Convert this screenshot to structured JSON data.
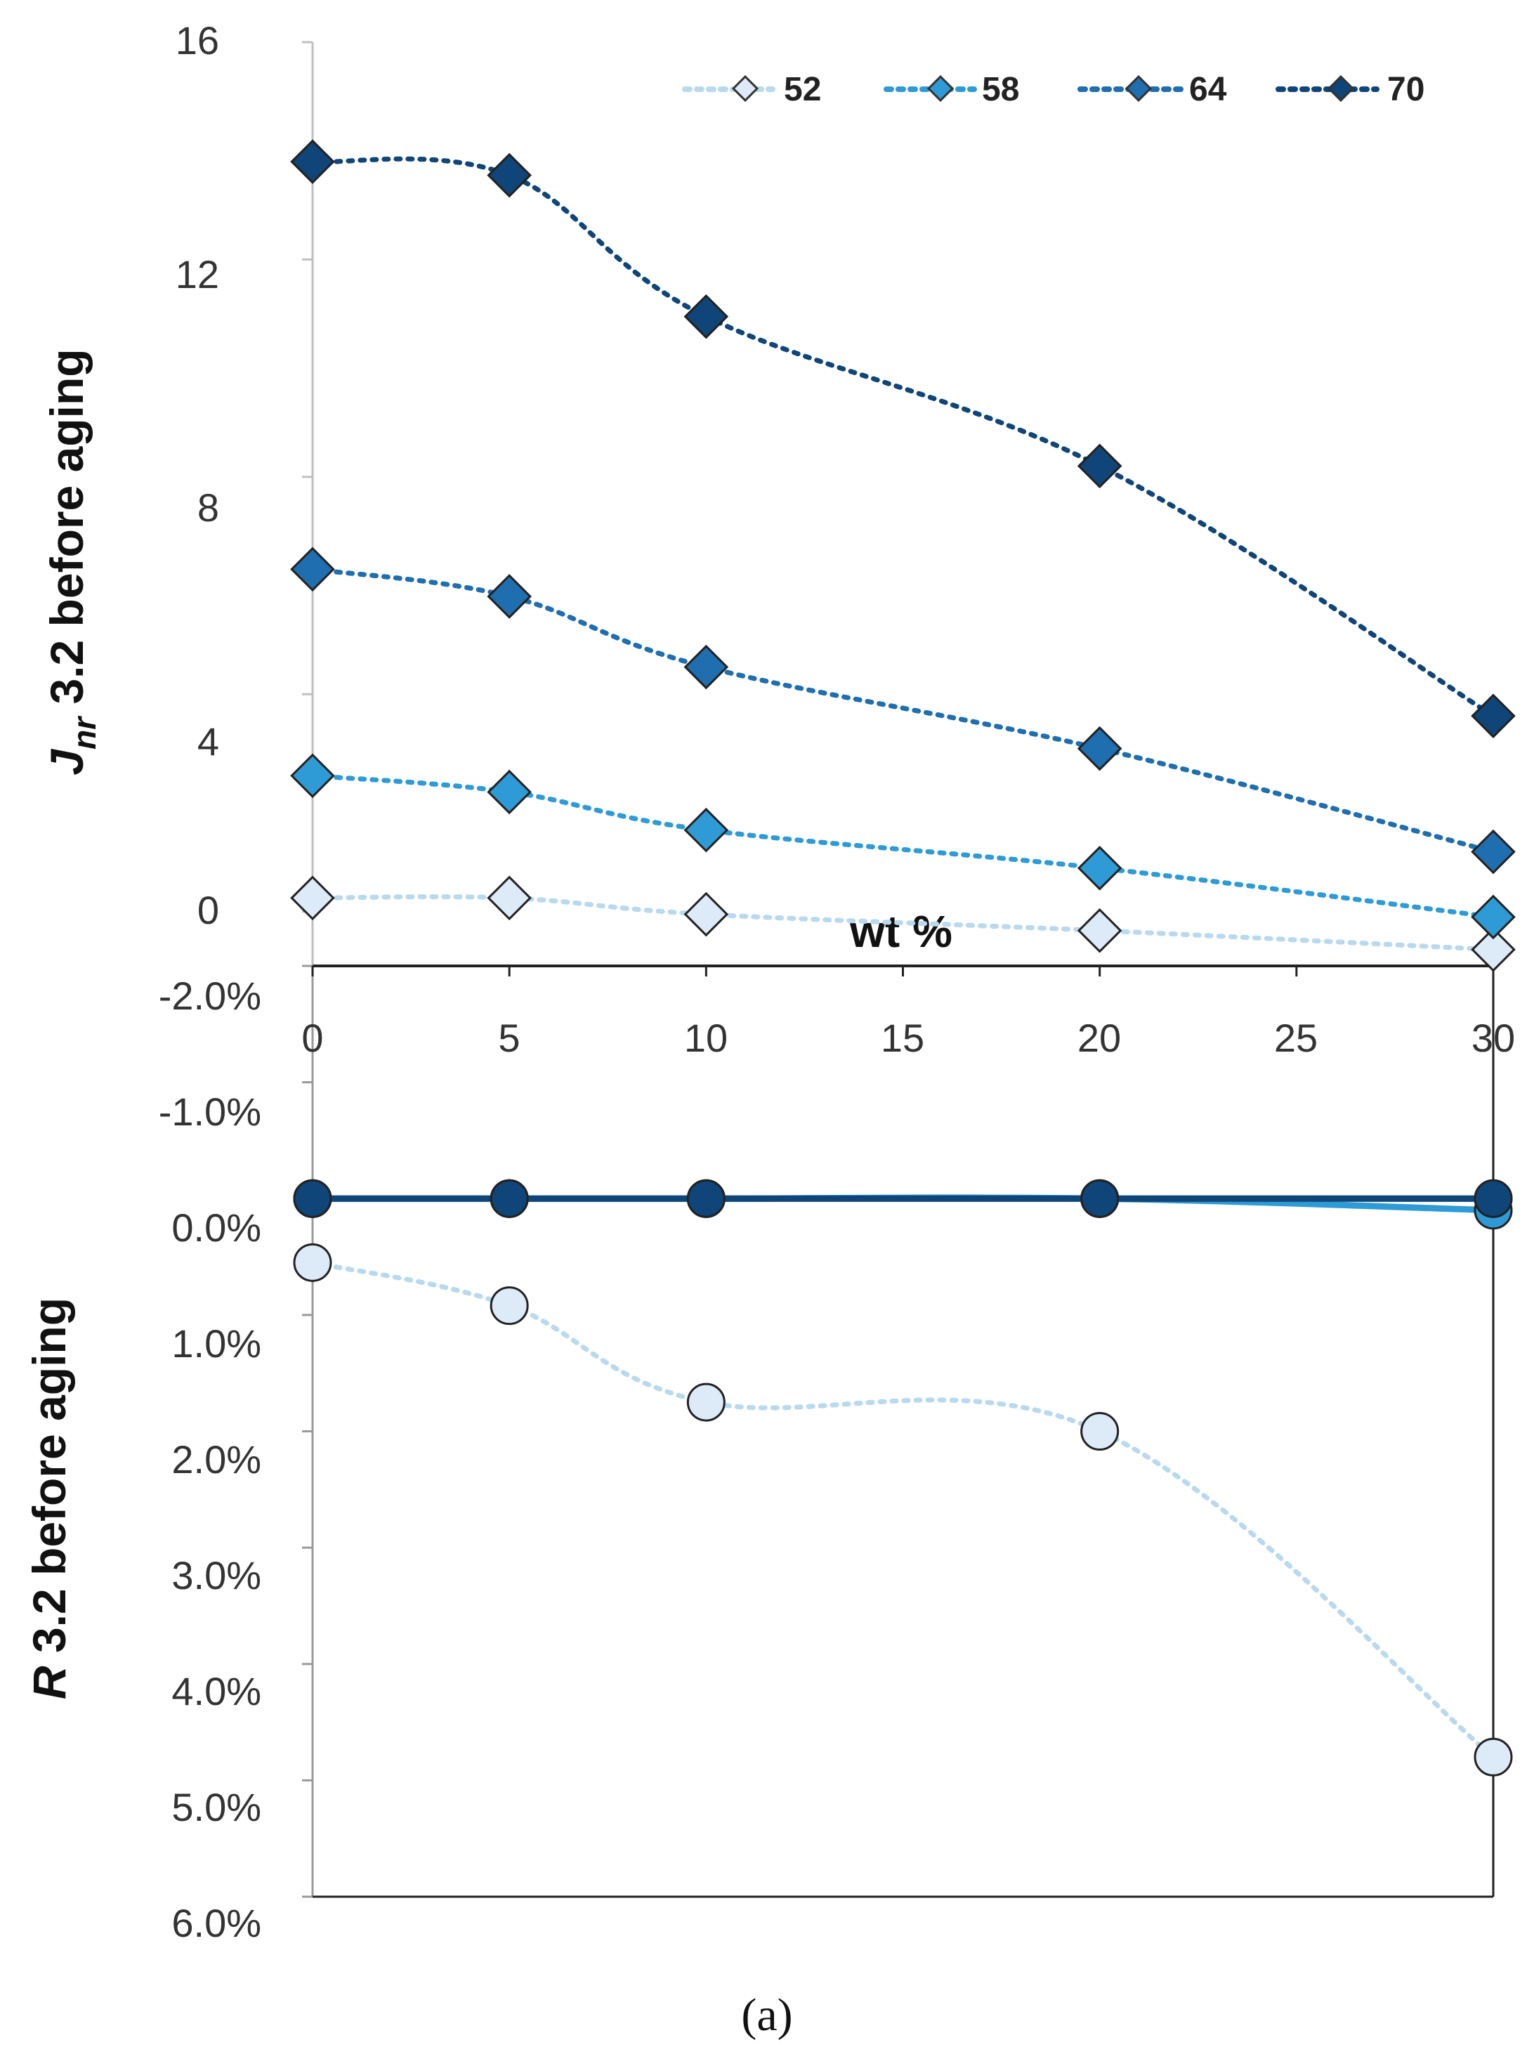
{
  "chart_data": [
    {
      "type": "line",
      "panel": "top",
      "title": "",
      "xlabel": "wt %",
      "ylabel_main": "J",
      "ylabel_sub": "nr",
      "ylabel_rest": " 3.2 before aging",
      "x_ticks": [
        "0",
        "5",
        "10",
        "15",
        "20",
        "25",
        "30"
      ],
      "y_ticks": [
        "16",
        "12",
        "8",
        "4",
        "0"
      ],
      "xlim": [
        0,
        30
      ],
      "ylim": [
        -1,
        16
      ],
      "legend_position": "top-right",
      "x": [
        0,
        5,
        10,
        20,
        30
      ],
      "series": [
        {
          "name": "52",
          "values": [
            0.25,
            0.25,
            -0.05,
            -0.35,
            -0.7
          ],
          "color": "#dcebf7"
        },
        {
          "name": "58",
          "values": [
            2.5,
            2.2,
            1.5,
            0.8,
            -0.1
          ],
          "color": "#2e9bd6"
        },
        {
          "name": "64",
          "values": [
            6.3,
            5.8,
            4.5,
            3.0,
            1.1
          ],
          "color": "#1f6eb0"
        },
        {
          "name": "70",
          "values": [
            13.8,
            13.55,
            10.95,
            8.2,
            3.6
          ],
          "color": "#0f4578"
        }
      ]
    },
    {
      "type": "line",
      "panel": "bottom",
      "title": "",
      "ylabel_main": "R",
      "ylabel_rest": " 3.2 before aging",
      "y_ticks": [
        "-2.0%",
        "-1.0%",
        "0.0%",
        "1.0%",
        "2.0%",
        "3.0%",
        "4.0%",
        "5.0%",
        "6.0%"
      ],
      "ylim": [
        -2,
        6
      ],
      "y_inverted": true,
      "x": [
        0,
        5,
        10,
        20,
        30
      ],
      "series": [
        {
          "name": "52",
          "values": [
            0.55,
            0.92,
            1.75,
            2.0,
            4.8
          ],
          "color": "#dcebf7"
        },
        {
          "name": "58",
          "values": [
            0.0,
            0.0,
            0.0,
            0.0,
            0.1
          ],
          "color": "#2e9bd6"
        },
        {
          "name": "64",
          "values": [
            0.0,
            0.0,
            0.0,
            0.0,
            0.0
          ],
          "color": "#1f6eb0"
        },
        {
          "name": "70",
          "values": [
            0.0,
            0.0,
            0.0,
            0.0,
            0.0
          ],
          "color": "#0f4578"
        }
      ]
    }
  ],
  "caption": "(a)"
}
